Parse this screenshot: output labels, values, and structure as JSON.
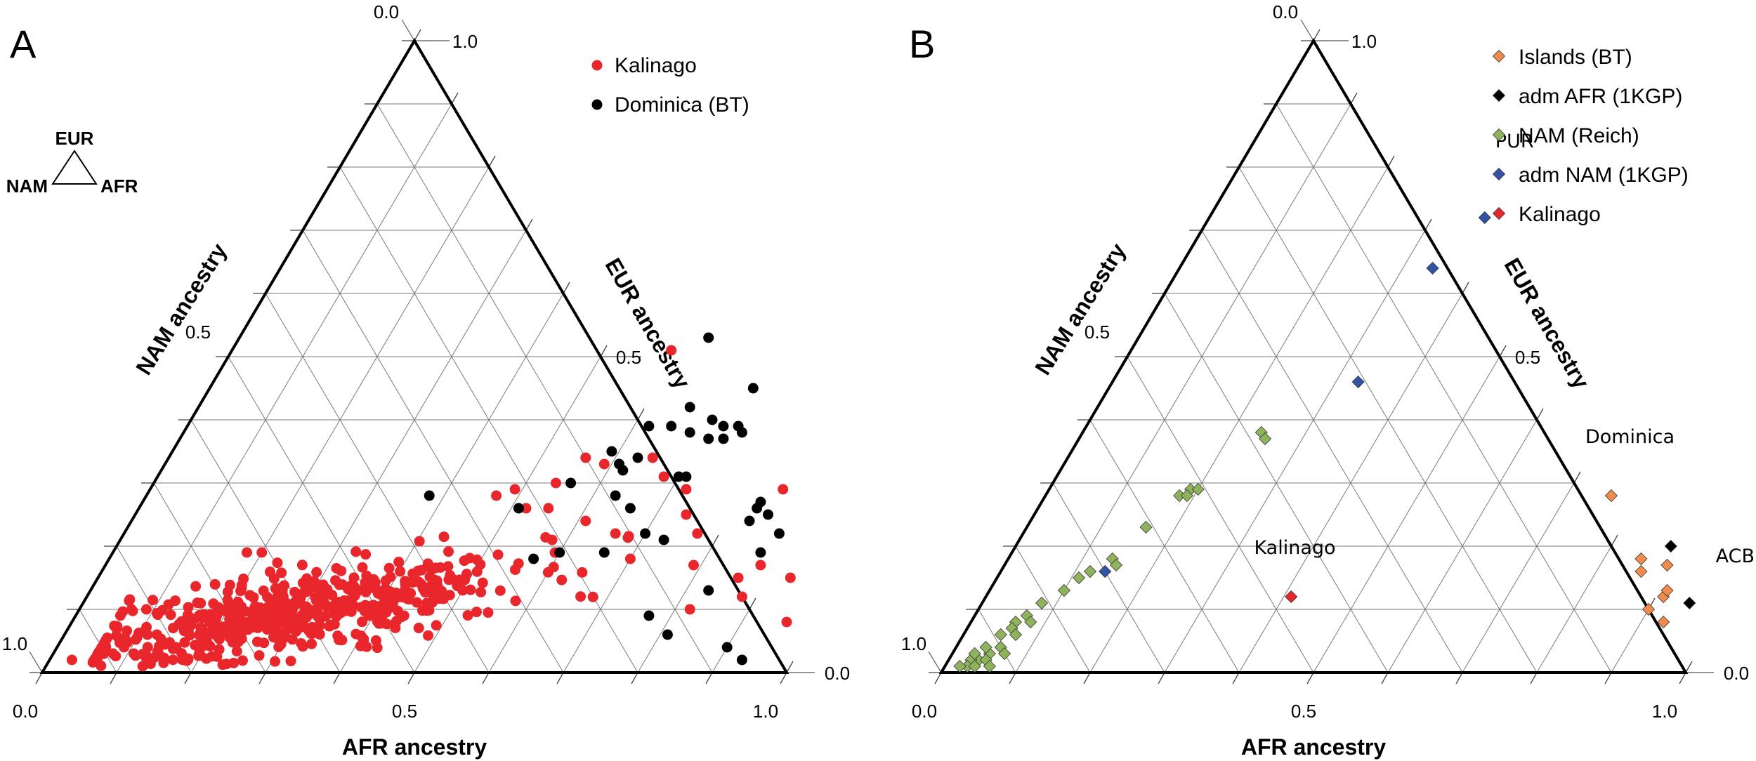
{
  "chart_data": [
    {
      "type": "scatter",
      "subtype": "ternary",
      "panel_label": "A",
      "axis_titles": {
        "bottom": "AFR ancestry",
        "left": "NAM ancestry",
        "right": "EUR ancestry"
      },
      "tick_labels": {
        "bottom": [
          "0.0",
          "0.5",
          "1.0"
        ],
        "left": [
          "0.0",
          "0.5",
          "1.0"
        ],
        "right": [
          "1.0",
          "0.5",
          "0.0"
        ]
      },
      "key": {
        "top": "EUR",
        "left": "NAM",
        "right": "AFR"
      },
      "legend": [
        {
          "label": "Kalinago",
          "color": "#e8262b",
          "marker": "circle"
        },
        {
          "label": "Dominica (BT)",
          "color": "#000000",
          "marker": "circle"
        }
      ],
      "series": [
        {
          "name": "Kalinago",
          "color": "#e8262b",
          "marker": "circle",
          "generated_count": 520,
          "points_afr_eur": [
            [
              0.59,
              0.51
            ],
            [
              0.56,
              0.34
            ],
            [
              0.59,
              0.33
            ],
            [
              0.54,
              0.3
            ],
            [
              0.52,
              0.26
            ],
            [
              0.55,
              0.26
            ],
            [
              0.65,
              0.34
            ],
            [
              0.68,
              0.31
            ],
            [
              0.72,
              0.29
            ],
            [
              0.74,
              0.25
            ],
            [
              0.85,
              0.29
            ],
            [
              0.86,
              0.15
            ],
            [
              0.93,
              0.15
            ],
            [
              0.96,
              0.08
            ],
            [
              0.88,
              0.12
            ],
            [
              0.82,
              0.1
            ],
            [
              0.79,
              0.17
            ],
            [
              0.77,
              0.22
            ],
            [
              0.88,
              0.17
            ],
            [
              0.58,
              0.21
            ],
            [
              0.61,
              0.24
            ],
            [
              0.66,
              0.22
            ],
            [
              0.7,
              0.18
            ],
            [
              0.47,
              0.28
            ],
            [
              0.49,
              0.29
            ],
            [
              0.18,
              0.19
            ],
            [
              0.2,
              0.19
            ],
            [
              0.07,
              0.1
            ],
            [
              0.09,
              0.1
            ],
            [
              0.08,
              0.03
            ],
            [
              0.09,
              0.04
            ],
            [
              0.03,
              0.02
            ],
            [
              0.06,
              0.03
            ],
            [
              0.13,
              0.01
            ],
            [
              0.16,
              0.04
            ]
          ]
        },
        {
          "name": "Dominica (BT)",
          "color": "#000000",
          "marker": "circle",
          "points_afr_eur": [
            [
              0.63,
              0.53
            ],
            [
              0.66,
              0.42
            ],
            [
              0.73,
              0.45
            ],
            [
              0.62,
              0.39
            ],
            [
              0.65,
              0.39
            ],
            [
              0.68,
              0.38
            ],
            [
              0.7,
              0.4
            ],
            [
              0.72,
              0.39
            ],
            [
              0.74,
              0.39
            ],
            [
              0.75,
              0.38
            ],
            [
              0.71,
              0.37
            ],
            [
              0.73,
              0.37
            ],
            [
              0.59,
              0.35
            ],
            [
              0.63,
              0.34
            ],
            [
              0.61,
              0.33
            ],
            [
              0.7,
              0.31
            ],
            [
              0.71,
              0.31
            ],
            [
              0.56,
              0.3
            ],
            [
              0.63,
              0.28
            ],
            [
              0.66,
              0.26
            ],
            [
              0.73,
              0.21
            ],
            [
              0.38,
              0.28
            ],
            [
              0.51,
              0.26
            ],
            [
              0.7,
              0.22
            ],
            [
              0.83,
              0.27
            ],
            [
              0.83,
              0.26
            ],
            [
              0.85,
              0.25
            ],
            [
              0.83,
              0.24
            ],
            [
              0.88,
              0.22
            ],
            [
              0.87,
              0.19
            ],
            [
              0.57,
              0.18
            ],
            [
              0.6,
              0.19
            ],
            [
              0.83,
              0.13
            ],
            [
              0.77,
              0.09
            ],
            [
              0.81,
              0.06
            ],
            [
              0.9,
              0.04
            ],
            [
              0.93,
              0.02
            ],
            [
              0.66,
              0.19
            ],
            [
              0.62,
              0.32
            ]
          ]
        }
      ]
    },
    {
      "type": "scatter",
      "subtype": "ternary",
      "panel_label": "B",
      "axis_titles": {
        "bottom": "AFR ancestry",
        "left": "NAM ancestry",
        "right": "EUR ancestry"
      },
      "tick_labels": {
        "bottom": [
          "0.0",
          "0.5",
          "1.0"
        ],
        "left": [
          "0.0",
          "0.5",
          "1.0"
        ],
        "right": [
          "1.0",
          "0.5",
          "0.0"
        ]
      },
      "legend": [
        {
          "label": "Islands (BT)",
          "color": "#f08b4b",
          "marker": "diamond"
        },
        {
          "label": "adm AFR (1KGP)",
          "color": "#000000",
          "marker": "diamond"
        },
        {
          "label": "NAM (Reich)",
          "color": "#8fb35c",
          "marker": "diamond"
        },
        {
          "label": "adm NAM (1KGP)",
          "color": "#3253a4",
          "marker": "diamond"
        },
        {
          "label": "Kalinago",
          "color": "#e8262b",
          "marker": "diamond"
        }
      ],
      "annotations": [
        {
          "text": "PUR",
          "afr": 0.37,
          "eur": 0.8
        },
        {
          "text": "Dominica",
          "afr": 0.76,
          "eur": 0.33
        },
        {
          "text": "Kalinago",
          "afr": 0.4,
          "eur": 0.15
        },
        {
          "text": "ACB",
          "afr": 0.98,
          "eur": 0.15
        }
      ],
      "series": [
        {
          "name": "Islands (BT)",
          "color": "#f08b4b",
          "points_afr_eur": [
            [
              0.76,
              0.28
            ],
            [
              0.85,
              0.18
            ],
            [
              0.86,
              0.16
            ],
            [
              0.89,
              0.17
            ],
            [
              0.91,
              0.12
            ],
            [
              0.91,
              0.13
            ],
            [
              0.9,
              0.1
            ],
            [
              0.93,
              0.08
            ]
          ]
        },
        {
          "name": "adm AFR (1KGP)",
          "color": "#000000",
          "points_afr_eur": [
            [
              0.88,
              0.2
            ],
            [
              0.95,
              0.11
            ]
          ]
        },
        {
          "name": "NAM (Reich)",
          "color": "#8fb35c",
          "points_afr_eur": [
            [
              0.24,
              0.38
            ],
            [
              0.25,
              0.37
            ],
            [
              0.19,
              0.29
            ],
            [
              0.2,
              0.29
            ],
            [
              0.18,
              0.28
            ],
            [
              0.19,
              0.28
            ],
            [
              0.16,
              0.23
            ],
            [
              0.14,
              0.18
            ],
            [
              0.15,
              0.17
            ],
            [
              0.12,
              0.16
            ],
            [
              0.11,
              0.15
            ],
            [
              0.1,
              0.13
            ],
            [
              0.08,
              0.11
            ],
            [
              0.07,
              0.09
            ],
            [
              0.08,
              0.08
            ],
            [
              0.06,
              0.08
            ],
            [
              0.06,
              0.07
            ],
            [
              0.07,
              0.06
            ],
            [
              0.05,
              0.06
            ],
            [
              0.06,
              0.04
            ],
            [
              0.05,
              0.03
            ],
            [
              0.04,
              0.04
            ],
            [
              0.04,
              0.02
            ],
            [
              0.03,
              0.02
            ],
            [
              0.03,
              0.01
            ],
            [
              0.02,
              0.01
            ],
            [
              0.04,
              0.01
            ],
            [
              0.05,
              0.02
            ],
            [
              0.03,
              0.03
            ],
            [
              0.06,
              0.01
            ],
            [
              0.07,
              0.03
            ]
          ]
        },
        {
          "name": "adm NAM (1KGP)",
          "color": "#3253a4",
          "points_afr_eur": [
            [
              0.37,
              0.72
            ],
            [
              0.34,
              0.64
            ],
            [
              0.33,
              0.46
            ],
            [
              0.14,
              0.16
            ]
          ]
        },
        {
          "name": "Kalinago",
          "color": "#e8262b",
          "points_afr_eur": [
            [
              0.41,
              0.12
            ]
          ]
        }
      ]
    }
  ]
}
